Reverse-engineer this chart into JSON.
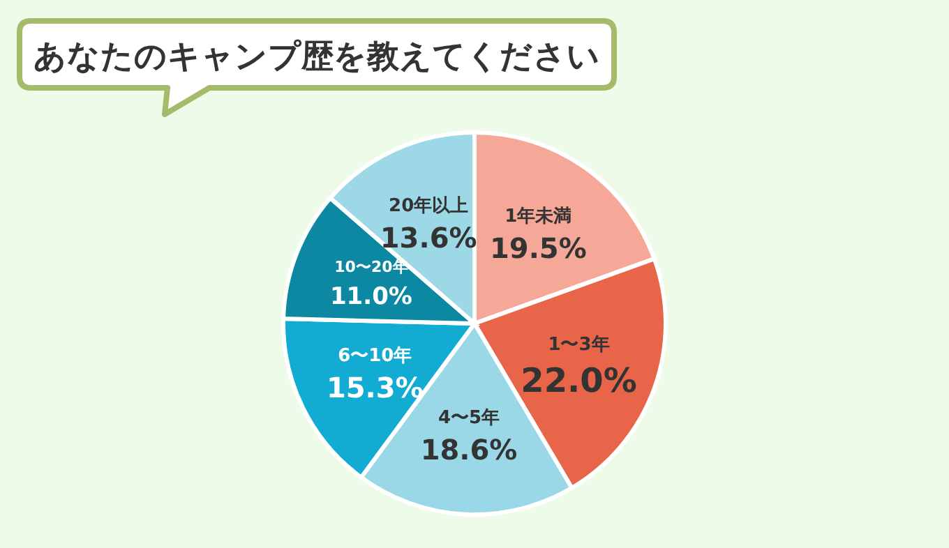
{
  "chart_data": {
    "type": "pie",
    "title": "あなたのキャンプ歴を教えてください",
    "categories": [
      "1年未満",
      "1〜3年",
      "4〜5年",
      "6〜10年",
      "10〜20年",
      "20年以上"
    ],
    "values": [
      19.5,
      22.0,
      18.6,
      15.3,
      11.0,
      13.6
    ],
    "colors": [
      "#f6a898",
      "#e8654a",
      "#9ad8e8",
      "#12abd2",
      "#0d88a3",
      "#9dd8e7"
    ],
    "value_labels": [
      "19.5%",
      "22.0%",
      "18.6%",
      "15.3%",
      "11.0%",
      "13.6%"
    ]
  }
}
